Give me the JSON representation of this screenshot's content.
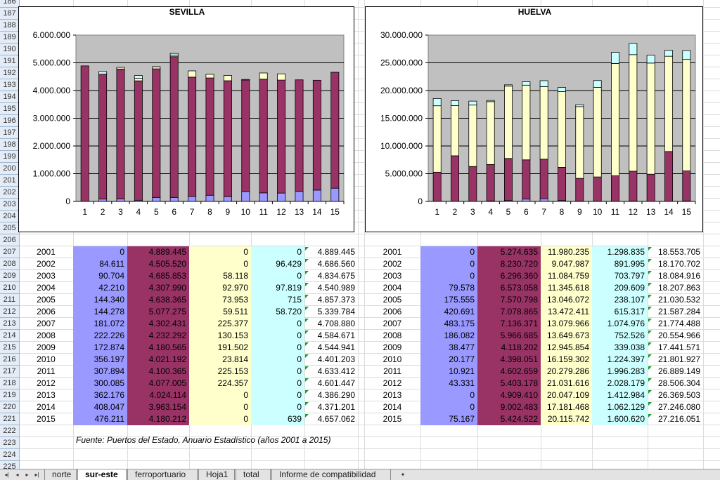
{
  "row_numbers": [
    "186",
    "187",
    "188",
    "189",
    "190",
    "191",
    "192",
    "193",
    "194",
    "195",
    "196",
    "197",
    "198",
    "199",
    "200",
    "201",
    "202",
    "203",
    "204",
    "205",
    "206",
    "207",
    "208",
    "209",
    "210",
    "211",
    "212",
    "213",
    "214",
    "215",
    "216",
    "217",
    "218",
    "219",
    "220",
    "221",
    "222",
    "223",
    "224",
    "225"
  ],
  "colors": {
    "blue": "#9999ff",
    "purple": "#993366",
    "yellow": "#ffffcc",
    "cyan": "#ccffff",
    "plot_bg": "#c0c0c0"
  },
  "charts": [
    {
      "title": "SEVILLA",
      "chart_data": {
        "type": "bar",
        "stacked": true,
        "categories": [
          "1",
          "2",
          "3",
          "4",
          "5",
          "6",
          "7",
          "8",
          "9",
          "10",
          "11",
          "12",
          "13",
          "14",
          "15"
        ],
        "y_ticks": [
          "0",
          "1.000.000",
          "2.000.000",
          "3.000.000",
          "4.000.000",
          "5.000.000",
          "6.000.000"
        ],
        "ylim": [
          0,
          6000000
        ],
        "grid": true,
        "series": [
          {
            "color": "#9999ff",
            "values": [
              0,
              84611,
              90704,
              42210,
              144340,
              144278,
              181072,
              222226,
              172874,
              356197,
              307894,
              300085,
              362176,
              408047,
              476211
            ]
          },
          {
            "color": "#993366",
            "values": [
              4889445,
              4505520,
              4685853,
              4307990,
              4638365,
              5077275,
              4302431,
              4232292,
              4180565,
              4021192,
              4100365,
              4077005,
              4024114,
              3963154,
              4180212
            ]
          },
          {
            "color": "#ffffcc",
            "values": [
              0,
              0,
              58118,
              92970,
              73953,
              59511,
              225377,
              130153,
              191502,
              23814,
              225153,
              224357,
              0,
              0,
              0
            ]
          },
          {
            "color": "#ccffff",
            "values": [
              0,
              96429,
              0,
              97819,
              715,
              58720,
              0,
              0,
              0,
              0,
              0,
              0,
              0,
              0,
              639
            ]
          }
        ]
      }
    },
    {
      "title": "HUELVA",
      "chart_data": {
        "type": "bar",
        "stacked": true,
        "categories": [
          "1",
          "2",
          "3",
          "4",
          "5",
          "6",
          "7",
          "8",
          "9",
          "10",
          "11",
          "12",
          "13",
          "14",
          "15"
        ],
        "y_ticks": [
          "0",
          "5.000.000",
          "10.000.000",
          "15.000.000",
          "20.000.000",
          "25.000.000",
          "30.000.000"
        ],
        "ylim": [
          0,
          30000000
        ],
        "grid": true,
        "series": [
          {
            "color": "#9999ff",
            "values": [
              0,
              0,
              0,
              79578,
              175555,
              420691,
              483175,
              186082,
              38477,
              20177,
              10921,
              43331,
              0,
              0,
              75167
            ]
          },
          {
            "color": "#993366",
            "values": [
              5274635,
              8230720,
              6296360,
              6573058,
              7570798,
              7078865,
              7136371,
              5966685,
              4118202,
              4398051,
              4602659,
              5403178,
              4909410,
              9002483,
              5424522
            ]
          },
          {
            "color": "#ffffcc",
            "values": [
              11980235,
              9047987,
              11084759,
              11345618,
              13046072,
              13472411,
              13079966,
              13649673,
              12945854,
              16159302,
              20279286,
              21031616,
              20047109,
              17181468,
              20115742
            ]
          },
          {
            "color": "#ccffff",
            "values": [
              1298835,
              891995,
              703797,
              209609,
              238107,
              615317,
              1074976,
              752526,
              339038,
              1224397,
              1996283,
              2028179,
              1412984,
              1062129,
              1600620
            ]
          }
        ]
      }
    }
  ],
  "tables": {
    "sevilla": [
      [
        "2001",
        "0",
        "4.889.445",
        "0",
        "0",
        "4.889.445"
      ],
      [
        "2002",
        "84.611",
        "4.505.520",
        "0",
        "96.429",
        "4.686.560"
      ],
      [
        "2003",
        "90.704",
        "4.685.853",
        "58.118",
        "0",
        "4.834.675"
      ],
      [
        "2004",
        "42.210",
        "4.307.990",
        "92.970",
        "97.819",
        "4.540.989"
      ],
      [
        "2005",
        "144.340",
        "4.638.365",
        "73.953",
        "715",
        "4.857.373"
      ],
      [
        "2006",
        "144.278",
        "5.077.275",
        "59.511",
        "58.720",
        "5.339.784"
      ],
      [
        "2007",
        "181.072",
        "4.302.431",
        "225.377",
        "0",
        "4.708.880"
      ],
      [
        "2008",
        "222.226",
        "4.232.292",
        "130.153",
        "0",
        "4.584.671"
      ],
      [
        "2009",
        "172.874",
        "4.180.565",
        "191.502",
        "0",
        "4.544.941"
      ],
      [
        "2010",
        "356.197",
        "4.021.192",
        "23.814",
        "0",
        "4.401.203"
      ],
      [
        "2011",
        "307.894",
        "4.100.365",
        "225.153",
        "0",
        "4.633.412"
      ],
      [
        "2012",
        "300.085",
        "4.077.005",
        "224.357",
        "0",
        "4.601.447"
      ],
      [
        "2013",
        "362.176",
        "4.024.114",
        "0",
        "0",
        "4.386.290"
      ],
      [
        "2014",
        "408.047",
        "3.963.154",
        "0",
        "0",
        "4.371.201"
      ],
      [
        "2015",
        "476.211",
        "4.180.212",
        "0",
        "639",
        "4.657.062"
      ]
    ],
    "huelva": [
      [
        "2001",
        "0",
        "5.274.635",
        "11.980.235",
        "1.298.835",
        "18.553.705"
      ],
      [
        "2002",
        "0",
        "8.230.720",
        "9.047.987",
        "891.995",
        "18.170.702"
      ],
      [
        "2003",
        "0",
        "6.296.360",
        "11.084.759",
        "703.797",
        "18.084.916"
      ],
      [
        "2004",
        "79.578",
        "6.573.058",
        "11.345.618",
        "209.609",
        "18.207.863"
      ],
      [
        "2005",
        "175.555",
        "7.570.798",
        "13.046.072",
        "238.107",
        "21.030.532"
      ],
      [
        "2006",
        "420.691",
        "7.078.865",
        "13.472.411",
        "615.317",
        "21.587.284"
      ],
      [
        "2007",
        "483.175",
        "7.136.371",
        "13.079.966",
        "1.074.976",
        "21.774.488"
      ],
      [
        "2008",
        "186.082",
        "5.966.685",
        "13.649.673",
        "752.526",
        "20.554.966"
      ],
      [
        "2009",
        "38.477",
        "4.118.202",
        "12.945.854",
        "339.038",
        "17.441.571"
      ],
      [
        "2010",
        "20.177",
        "4.398.051",
        "16.159.302",
        "1.224.397",
        "21.801.927"
      ],
      [
        "2011",
        "10.921",
        "4.602.659",
        "20.279.286",
        "1.996.283",
        "26.889.149"
      ],
      [
        "2012",
        "43.331",
        "5.403.178",
        "21.031.616",
        "2.028.179",
        "28.506.304"
      ],
      [
        "2013",
        "0",
        "4.909.410",
        "20.047.109",
        "1.412.984",
        "26.369.503"
      ],
      [
        "2014",
        "0",
        "9.002.483",
        "17.181.468",
        "1.062.129",
        "27.246.080"
      ],
      [
        "2015",
        "75.167",
        "5.424.522",
        "20.115.742",
        "1.600.620",
        "27.216.051"
      ]
    ]
  },
  "footnote": "Fuente: Puertos del Estado, Anuario Estadístico (años 2001 a 2015)",
  "sheet_tabs": [
    {
      "label": "norte",
      "active": false
    },
    {
      "label": "sur-este",
      "active": true
    },
    {
      "label": "ferroportuario",
      "active": false
    },
    {
      "label": "Hoja1",
      "active": false
    },
    {
      "label": "total",
      "active": false
    },
    {
      "label": "Informe de compatibilidad",
      "active": false
    }
  ]
}
